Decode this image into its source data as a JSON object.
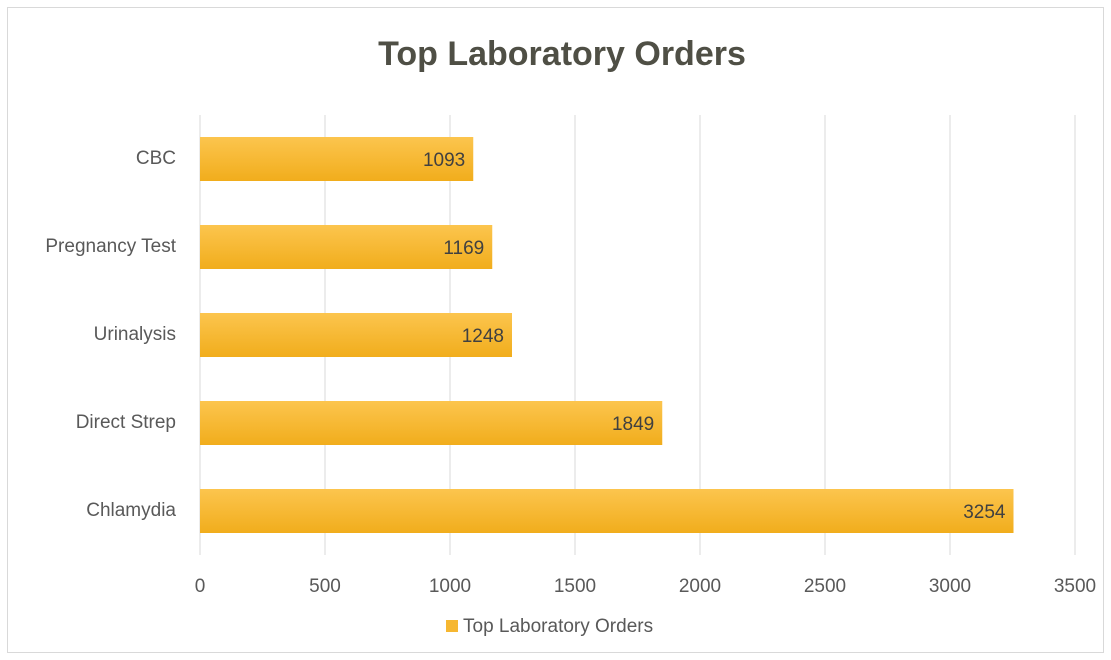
{
  "chart_data": {
    "type": "bar",
    "orientation": "horizontal",
    "title": "Top Laboratory Orders",
    "categories": [
      "Chlamydia",
      "Direct Strep",
      "Urinalysis",
      "Pregnancy Test",
      "CBC"
    ],
    "series": [
      {
        "name": "Top Laboratory Orders",
        "color": "#f6b731",
        "values": [
          3254,
          1849,
          1248,
          1169,
          1093
        ]
      }
    ],
    "xlim": [
      0,
      3500
    ],
    "xticks": [
      0,
      500,
      1000,
      1500,
      2000,
      2500,
      3000,
      3500
    ],
    "grid": true,
    "legend": "bottom"
  }
}
